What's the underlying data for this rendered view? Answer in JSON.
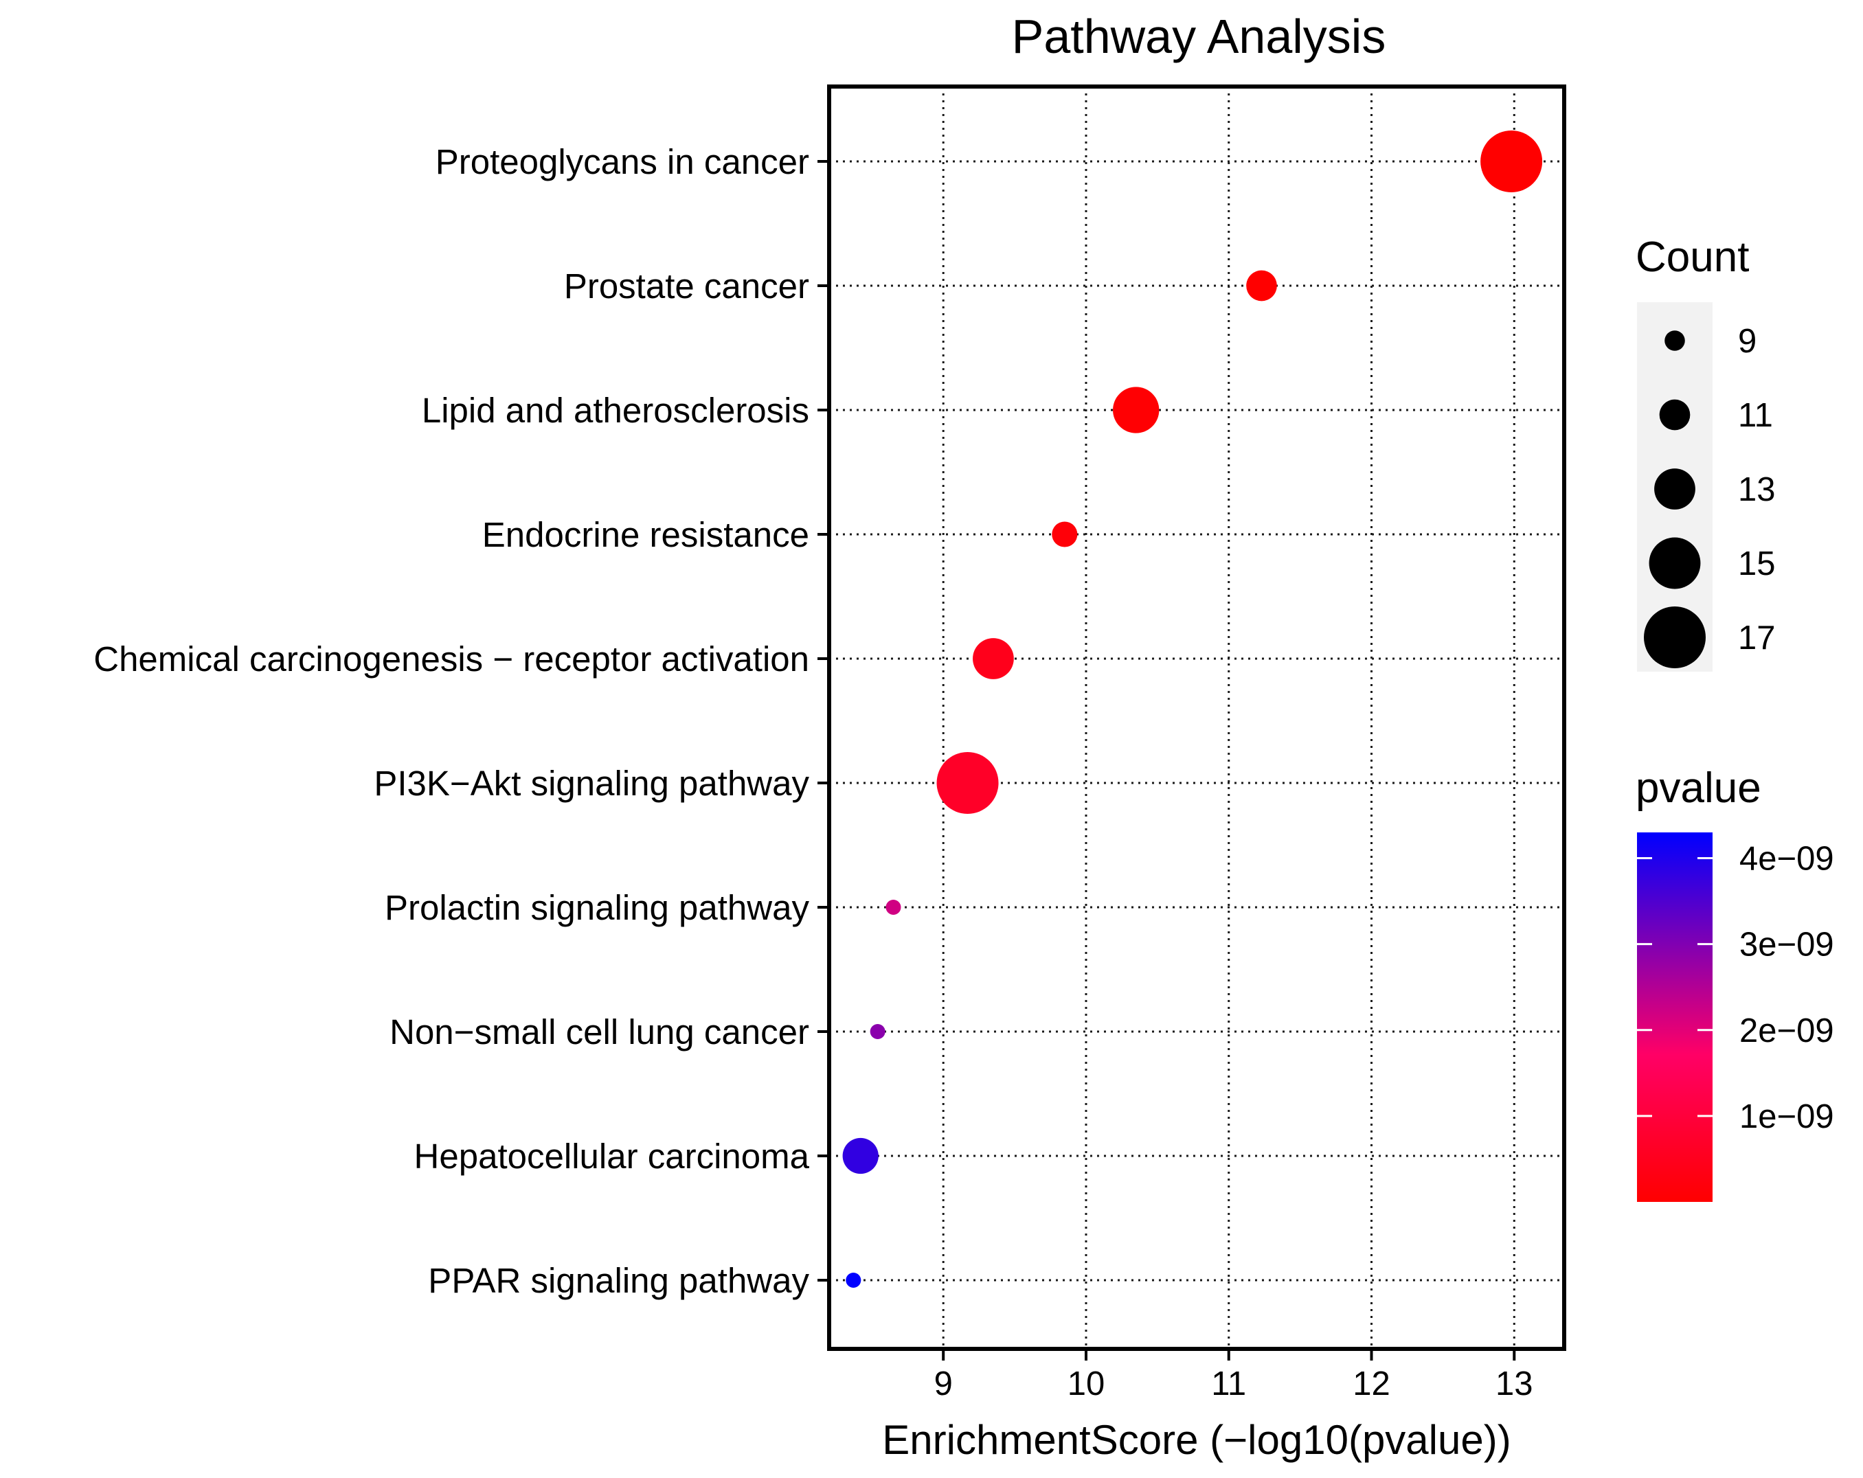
{
  "chart_data": {
    "type": "scatter",
    "title": "Pathway Analysis",
    "xlabel": "EnrichmentScore (−log10(pvalue))",
    "ylabel": "",
    "xlim": [
      8.2,
      13.35
    ],
    "x_ticks": [
      9,
      10,
      11,
      12,
      13
    ],
    "x_tick_labels": [
      "9",
      "10",
      "11",
      "12",
      "13"
    ],
    "grid": true,
    "pathways": [
      {
        "name": "Proteoglycans in cancer",
        "score": 12.98,
        "count": 17,
        "pvalue": 1e-13
      },
      {
        "name": "Prostate cancer",
        "score": 11.23,
        "count": 11,
        "pvalue": 5.9e-12
      },
      {
        "name": "Lipid and atherosclerosis",
        "score": 10.35,
        "count": 14,
        "pvalue": 4.5e-11
      },
      {
        "name": "Endocrine resistance",
        "score": 9.85,
        "count": 10,
        "pvalue": 1.4e-10
      },
      {
        "name": "Chemical carcinogenesis − receptor activation",
        "score": 9.35,
        "count": 13,
        "pvalue": 4.5e-10
      },
      {
        "name": "PI3K−Akt signaling pathway",
        "score": 9.17,
        "count": 17,
        "pvalue": 6.8e-10
      },
      {
        "name": "Prolactin signaling pathway",
        "score": 8.65,
        "count": 8,
        "pvalue": 2.2e-09
      },
      {
        "name": "Non−small cell lung cancer",
        "score": 8.54,
        "count": 8,
        "pvalue": 2.9e-09
      },
      {
        "name": "Hepatocellular carcinoma",
        "score": 8.42,
        "count": 12,
        "pvalue": 3.8e-09
      },
      {
        "name": "PPAR signaling pathway",
        "score": 8.37,
        "count": 8,
        "pvalue": 4.3e-09
      }
    ],
    "size_legend": {
      "title": "Count",
      "values": [
        9,
        11,
        13,
        15,
        17
      ],
      "labels": [
        "9",
        "11",
        "13",
        "15",
        "17"
      ]
    },
    "color_legend": {
      "title": "pvalue",
      "low_color": "#ff0000",
      "mid_color": "#ff0066",
      "high_color": "#0000ff",
      "range": [
        0,
        4.3e-09
      ],
      "ticks": [
        1e-09,
        2e-09,
        3e-09,
        4e-09
      ],
      "tick_labels": [
        "1e−09",
        "2e−09",
        "3e−09",
        "4e−09"
      ]
    },
    "legend_position": "right"
  }
}
